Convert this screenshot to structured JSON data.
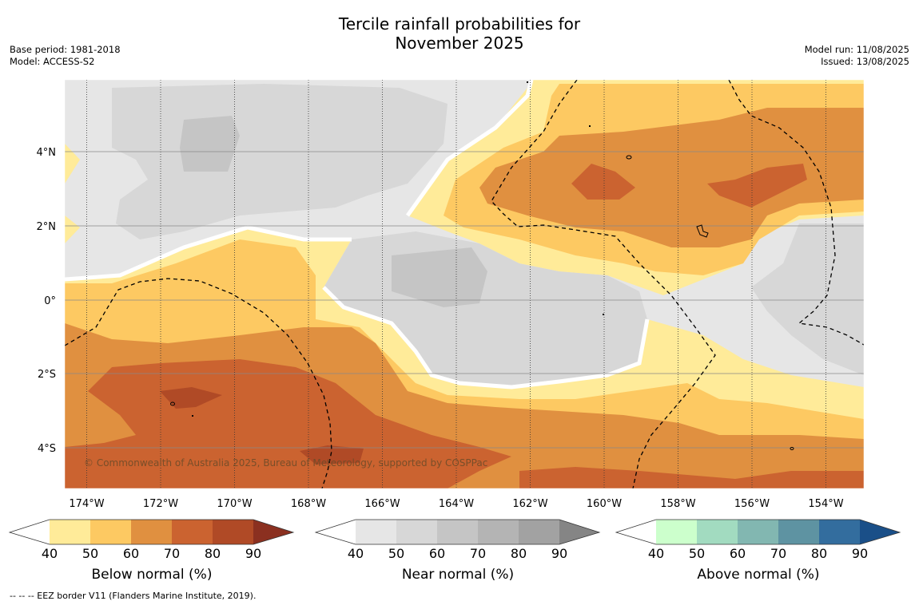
{
  "header": {
    "title_line1": "Tercile rainfall probabilities for",
    "title_line2": "November 2025",
    "base_period": "Base period: 1981-2018",
    "model": "Model: ACCESS-S2",
    "model_run": "Model run: 11/08/2025",
    "issued": "Issued: 13/08/2025"
  },
  "map": {
    "x_ticks": [
      "174°W",
      "172°W",
      "170°W",
      "168°W",
      "166°W",
      "164°W",
      "162°W",
      "160°W",
      "158°W",
      "156°W",
      "154°W"
    ],
    "y_ticks": [
      "4°N",
      "2°N",
      "0°",
      "2°S",
      "4°S"
    ],
    "copyright": "© Commonwealth of Australia 2025, Bureau of Meteorology, supported by COSPPac"
  },
  "legends": [
    {
      "label": "Below normal (%)",
      "ticks": [
        "40",
        "50",
        "60",
        "70",
        "80",
        "90"
      ],
      "colors": [
        "#ffffff",
        "#ffeb99",
        "#fdc962",
        "#e09040",
        "#cb6330",
        "#b04a26",
        "#8b3020"
      ]
    },
    {
      "label": "Near normal (%)",
      "ticks": [
        "40",
        "50",
        "60",
        "70",
        "80",
        "90"
      ],
      "colors": [
        "#ffffff",
        "#e6e6e6",
        "#d7d7d7",
        "#c5c5c5",
        "#b4b4b4",
        "#a2a2a2",
        "#858585"
      ]
    },
    {
      "label": "Above normal (%)",
      "ticks": [
        "40",
        "50",
        "60",
        "70",
        "80",
        "90"
      ],
      "colors": [
        "#ffffff",
        "#ccffcc",
        "#a2dbc0",
        "#82b7b1",
        "#5e93a2",
        "#336d9e",
        "#1a4f88"
      ]
    }
  ],
  "footnote": "-- -- -- EEZ border V11 (Flanders Marine Institute, 2019)."
}
